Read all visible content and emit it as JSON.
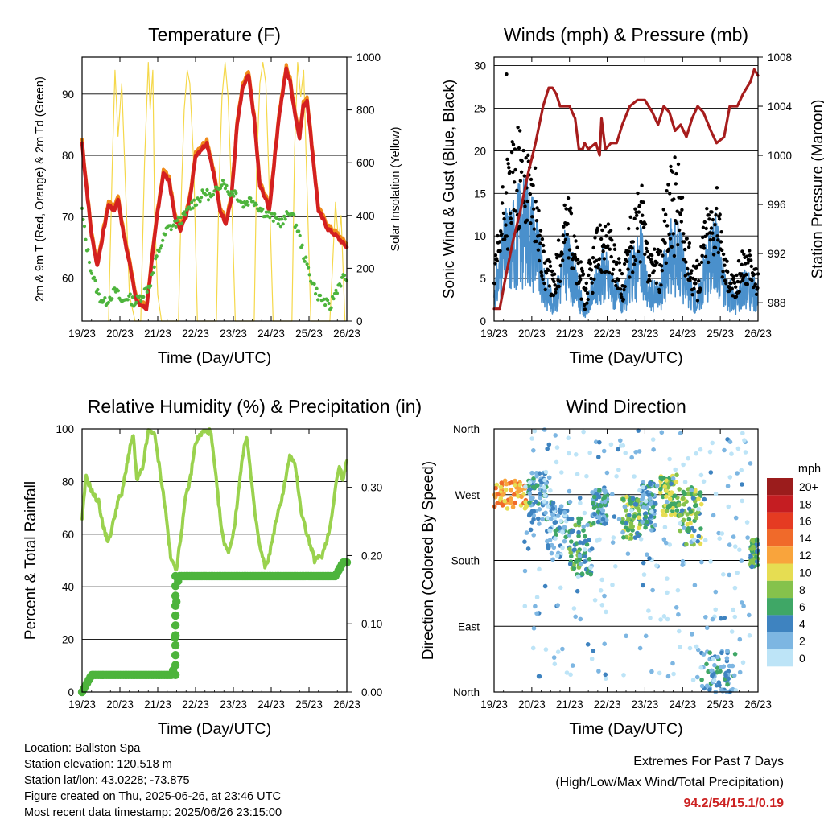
{
  "colors": {
    "temp_red": "#d42020",
    "temp_orange": "#f08a1a",
    "dewpoint_green": "#4db43c",
    "insolation_yellow": "#f5d84a",
    "wind_blue": "#4a90cc",
    "gust_black": "#000000",
    "pressure_maroon": "#a61c1c",
    "rh_green": "#9ad24e",
    "precip_green": "#4db43c",
    "extremes_red": "#cc2222"
  },
  "x_axis": {
    "label": "Time (Day/UTC)",
    "ticks": [
      "19/23",
      "20/23",
      "21/23",
      "22/23",
      "23/23",
      "24/23",
      "25/23",
      "26/23"
    ]
  },
  "footer": {
    "location": "Location: Ballston Spa",
    "elevation": "Station elevation: 120.518 m",
    "latlon": "Station lat/lon: 43.0228; -73.875",
    "created": "Figure created on Thu, 2025-06-26, at 23:46 UTC",
    "timestamp": "Most recent data timestamp: 2025/06/26 23:15:00",
    "extremes_title": "Extremes For Past 7 Days",
    "extremes_sub": "(High/Low/Max Wind/Total Precipitation)",
    "extremes_value": "94.2/54/15.1/0.19"
  },
  "chart_data": [
    {
      "type": "line",
      "title": "Temperature (F)",
      "xlabel": "Time (Day/UTC)",
      "ylabel": "2m & 9m T (Red, Orange) & 2m Td (Green)",
      "ylabel_right": "Solar Insolation (Yellow)",
      "x_domain_days": [
        0,
        7
      ],
      "ylim": [
        53,
        96
      ],
      "yticks": [
        60,
        70,
        80,
        90
      ],
      "ylim_right": [
        0,
        1000
      ],
      "yticks_right": [
        0,
        200,
        400,
        600,
        800,
        1000
      ],
      "grid": true,
      "series": [
        {
          "key": "temp",
          "x": [
            0,
            0.08,
            0.25,
            0.4,
            0.55,
            0.7,
            0.85,
            0.95,
            1.1,
            1.3,
            1.45,
            1.7,
            1.85,
            2.0,
            2.15,
            2.3,
            2.45,
            2.6,
            2.75,
            2.9,
            3.0,
            3.3,
            3.45,
            3.65,
            3.8,
            3.95,
            4.1,
            4.25,
            4.4,
            4.55,
            4.7,
            4.85,
            4.95,
            5.2,
            5.4,
            5.5,
            5.65,
            5.75,
            5.85,
            5.95,
            6.25,
            6.5,
            6.7,
            6.85,
            7.0
          ],
          "y": [
            82,
            77,
            67,
            62,
            67,
            72,
            71,
            73,
            67,
            61,
            56,
            55,
            63,
            71,
            77,
            76,
            70,
            68,
            70,
            75,
            80,
            82,
            78,
            71,
            69,
            73,
            85,
            91,
            93,
            86,
            75,
            73,
            71,
            86,
            94,
            92,
            86,
            83,
            88,
            89,
            71,
            68,
            67,
            66,
            65
          ]
        },
        {
          "key": "dewpoint",
          "x": [
            0,
            0.1,
            0.25,
            0.45,
            0.6,
            0.75,
            0.9,
            1.05,
            1.2,
            1.4,
            1.55,
            1.8,
            2.0,
            2.25,
            2.5,
            2.7,
            2.9,
            3.1,
            3.25,
            3.45,
            3.6,
            3.75,
            3.85,
            4.05,
            4.25,
            4.5,
            4.75,
            5.0,
            5.3,
            5.5,
            5.7,
            5.85,
            6.05,
            6.25,
            6.45,
            6.55,
            6.65,
            6.8,
            6.9,
            7.0
          ],
          "y": [
            71,
            66,
            61,
            57,
            56,
            57,
            58,
            56,
            57,
            56,
            57,
            59,
            64,
            68,
            69,
            70,
            72,
            73,
            74,
            73,
            75,
            76,
            74,
            74,
            72,
            73,
            71,
            70,
            69,
            71,
            68,
            64,
            60,
            57,
            56,
            55,
            57,
            59,
            60,
            60
          ]
        },
        {
          "key": "insolation",
          "axis": "right",
          "x": [
            0.7,
            0.8,
            0.87,
            0.95,
            1.05,
            1.15,
            1.25,
            1.4,
            1.55,
            1.65,
            1.75,
            1.8,
            1.87,
            1.92,
            2.0,
            2.1,
            2.3,
            2.55,
            2.63,
            2.7,
            2.78,
            2.85,
            2.95,
            3.05,
            3.3,
            3.55,
            3.62,
            3.7,
            3.78,
            3.86,
            3.95,
            4.05,
            4.3,
            4.55,
            4.62,
            4.7,
            4.78,
            4.86,
            4.95,
            5.05,
            5.3,
            5.55,
            5.62,
            5.7,
            5.78,
            5.86,
            5.95,
            6.05,
            6.3,
            6.55,
            6.62,
            6.7,
            6.78,
            6.85,
            6.95
          ],
          "y": [
            0,
            600,
            950,
            700,
            900,
            500,
            100,
            0,
            0,
            600,
            980,
            800,
            950,
            400,
            100,
            0,
            0,
            0,
            500,
            800,
            950,
            900,
            600,
            0,
            0,
            0,
            500,
            850,
            980,
            850,
            500,
            0,
            0,
            0,
            600,
            900,
            980,
            900,
            500,
            0,
            0,
            0,
            650,
            980,
            850,
            950,
            500,
            0,
            0,
            0,
            200,
            450,
            300,
            400,
            0
          ]
        }
      ]
    },
    {
      "type": "scatter",
      "title": "Winds (mph) & Pressure (mb)",
      "xlabel": "Time (Day/UTC)",
      "ylabel": "Sonic Wind & Gust (Blue, Black)",
      "ylabel_right": "Station Pressure (Maroon)",
      "x_domain_days": [
        0,
        7
      ],
      "ylim": [
        0,
        31
      ],
      "yticks": [
        0,
        5,
        10,
        15,
        20,
        25,
        30
      ],
      "ylim_right": [
        986.5,
        1008
      ],
      "yticks_right": [
        988,
        992,
        996,
        1000,
        1004,
        1008
      ],
      "grid": true,
      "pressure": {
        "x": [
          0,
          0.15,
          0.3,
          0.5,
          0.7,
          0.9,
          1.1,
          1.3,
          1.45,
          1.55,
          1.65,
          1.75,
          1.85,
          2.0,
          2.15,
          2.25,
          2.35,
          2.4,
          2.5,
          2.7,
          2.8,
          2.85,
          2.95,
          3.1,
          3.25,
          3.4,
          3.6,
          3.8,
          4.0,
          4.2,
          4.35,
          4.5,
          4.65,
          4.8,
          4.95,
          5.1,
          5.25,
          5.4,
          5.55,
          5.75,
          5.9,
          6.1,
          6.25,
          6.45,
          6.6,
          6.8,
          6.9,
          7.0
        ],
        "y": [
          987.5,
          987.5,
          990,
          993,
          995.5,
          998.5,
          1001,
          1004,
          1005.5,
          1005.5,
          1005,
          1004,
          1004,
          1004,
          1003,
          1000.5,
          1000.5,
          1001,
          1000.5,
          1001,
          1000,
          1003,
          1000.5,
          1001,
          1001,
          1002.5,
          1004,
          1004.5,
          1004.5,
          1003.5,
          1002.5,
          1004,
          1003.5,
          1002,
          1002.5,
          1001.5,
          1003,
          1004,
          1003.5,
          1002,
          1001,
          1001.5,
          1004,
          1004,
          1005,
          1006,
          1007,
          1006.5
        ]
      },
      "wind_envelope": {
        "x": [
          0,
          0.3,
          0.6,
          0.9,
          1.1,
          1.3,
          1.6,
          1.9,
          2.1,
          2.4,
          2.6,
          2.9,
          3.1,
          3.4,
          3.6,
          3.9,
          4.1,
          4.4,
          4.6,
          4.9,
          5.1,
          5.4,
          5.6,
          5.9,
          6.1,
          6.4,
          6.6,
          7.0
        ],
        "mean": [
          3,
          8,
          10,
          11,
          9,
          4,
          2,
          7,
          5,
          1,
          3,
          6,
          4,
          2,
          5,
          7,
          3,
          3,
          7,
          8,
          4,
          2,
          6,
          8,
          4,
          2,
          4,
          3
        ],
        "gust_peak": [
          6,
          19,
          23,
          22,
          18,
          9,
          6,
          16,
          12,
          5,
          9,
          14,
          11,
          6,
          12,
          17,
          8,
          9,
          18,
          20,
          10,
          7,
          14,
          16,
          9,
          5,
          10,
          6
        ]
      }
    },
    {
      "type": "line",
      "title": "Relative Humidity (%) & Precipitation (in)",
      "xlabel": "Time (Day/UTC)",
      "ylabel": "Percent & Total Rainfall",
      "x_domain_days": [
        0,
        7
      ],
      "ylim": [
        0,
        100
      ],
      "yticks": [
        0,
        20,
        40,
        60,
        80,
        100
      ],
      "ylim_right": [
        0,
        0.3857
      ],
      "yticks_right": [
        "0.00",
        "0.10",
        "0.20",
        "0.30"
      ],
      "grid": true,
      "series": [
        {
          "key": "rh",
          "x": [
            0,
            0.1,
            0.3,
            0.45,
            0.55,
            0.7,
            0.85,
            0.95,
            1.05,
            1.2,
            1.35,
            1.45,
            1.6,
            1.75,
            1.9,
            2.05,
            2.2,
            2.35,
            2.5,
            2.6,
            2.75,
            2.85,
            3.0,
            3.2,
            3.4,
            3.55,
            3.7,
            3.85,
            3.95,
            4.05,
            4.2,
            4.35,
            4.55,
            4.7,
            4.85,
            4.95,
            5.1,
            5.3,
            5.5,
            5.65,
            5.8,
            5.95,
            6.15,
            6.35,
            6.55,
            6.7,
            6.8,
            6.9,
            7.0
          ],
          "y": [
            65,
            82,
            75,
            72,
            63,
            57,
            66,
            73,
            75,
            88,
            98,
            80,
            85,
            99,
            99,
            85,
            70,
            50,
            47,
            58,
            75,
            80,
            95,
            99,
            99,
            80,
            60,
            53,
            57,
            65,
            85,
            98,
            70,
            55,
            47,
            52,
            63,
            75,
            90,
            85,
            68,
            60,
            50,
            52,
            62,
            78,
            86,
            80,
            88
          ]
        },
        {
          "key": "precip",
          "axis": "right",
          "x": [
            0,
            0.1,
            0.25,
            2.4,
            2.45,
            2.5,
            2.55,
            6.7,
            6.8,
            6.9,
            7.0
          ],
          "y": [
            0,
            0.01,
            0.025,
            0.025,
            0.08,
            0.14,
            0.17,
            0.17,
            0.18,
            0.19,
            0.19
          ]
        }
      ]
    },
    {
      "type": "scatter",
      "title": "Wind Direction",
      "xlabel": "Time (Day/UTC)",
      "ylabel": "Direction (Colored By Speed)",
      "x_domain_days": [
        0,
        7
      ],
      "ylim_deg": [
        0,
        360
      ],
      "yticks": [
        "North",
        "East",
        "South",
        "West",
        "North"
      ],
      "grid": true,
      "colorbar": {
        "title": "mph",
        "labels": [
          "20+",
          "18",
          "16",
          "14",
          "12",
          "10",
          "8",
          "6",
          "4",
          "2",
          "0"
        ],
        "colors": [
          "#9b1c1c",
          "#c51d22",
          "#e53b22",
          "#f06a2a",
          "#f9a43c",
          "#e6dd52",
          "#85c24c",
          "#3fa766",
          "#3e83c0",
          "#7db6e2",
          "#bde4f7"
        ]
      },
      "clusters": [
        {
          "x": [
            0,
            0.9
          ],
          "deg": [
            250,
            290
          ],
          "speed": 12
        },
        {
          "x": [
            0.9,
            1.4
          ],
          "deg": [
            230,
            300
          ],
          "speed": 4
        },
        {
          "x": [
            1.4,
            2.0
          ],
          "deg": [
            180,
            260
          ],
          "speed": 3
        },
        {
          "x": [
            2.0,
            2.6
          ],
          "deg": [
            160,
            240
          ],
          "speed": 5
        },
        {
          "x": [
            2.6,
            3.0
          ],
          "deg": [
            230,
            280
          ],
          "speed": 4
        },
        {
          "x": [
            3.4,
            3.9
          ],
          "deg": [
            210,
            270
          ],
          "speed": 7
        },
        {
          "x": [
            3.9,
            4.3
          ],
          "deg": [
            220,
            290
          ],
          "speed": 4
        },
        {
          "x": [
            4.4,
            4.9
          ],
          "deg": [
            240,
            300
          ],
          "speed": 8
        },
        {
          "x": [
            4.9,
            5.5
          ],
          "deg": [
            200,
            280
          ],
          "speed": 7
        },
        {
          "x": [
            5.4,
            6.4
          ],
          "deg": [
            0,
            60
          ],
          "speed": 4
        },
        {
          "x": [
            6.8,
            7.0
          ],
          "deg": [
            170,
            210
          ],
          "speed": 6
        },
        {
          "x": [
            0.8,
            6.8
          ],
          "deg": [
            0,
            360
          ],
          "speed": 1
        }
      ]
    }
  ]
}
